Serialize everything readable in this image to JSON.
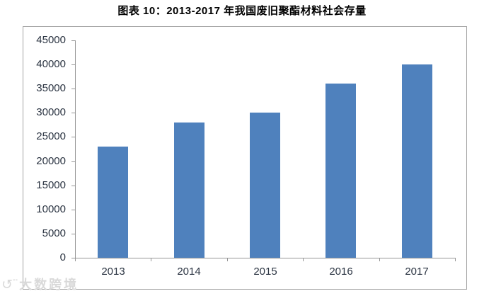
{
  "title": "图表 10：2013-2017 年我国废旧聚酯材料社会存量",
  "watermark": {
    "icon": "↺",
    "icon_name": "circular-arrow-logo",
    "text": "大数跨境"
  },
  "colors": {
    "bar": "#4F81BD",
    "axis_line": "#969696",
    "tick_label": "#2b3442",
    "chart_border": "#a3a3a3",
    "title_color": "#000000",
    "watermark_color": "#d9d9d9",
    "background": "#ffffff"
  },
  "chart_data": {
    "type": "bar",
    "title": "图表 10：2013-2017 年我国废旧聚酯材料社会存量",
    "categories": [
      "2013",
      "2014",
      "2015",
      "2016",
      "2017"
    ],
    "values": [
      23000,
      28000,
      30000,
      36000,
      40000
    ],
    "xlabel": "",
    "ylabel": "",
    "ylim": [
      0,
      45000
    ],
    "yticks": [
      0,
      5000,
      10000,
      15000,
      20000,
      25000,
      30000,
      35000,
      40000,
      45000
    ],
    "grid": false,
    "legend": null,
    "bar_color": "#4F81BD"
  }
}
